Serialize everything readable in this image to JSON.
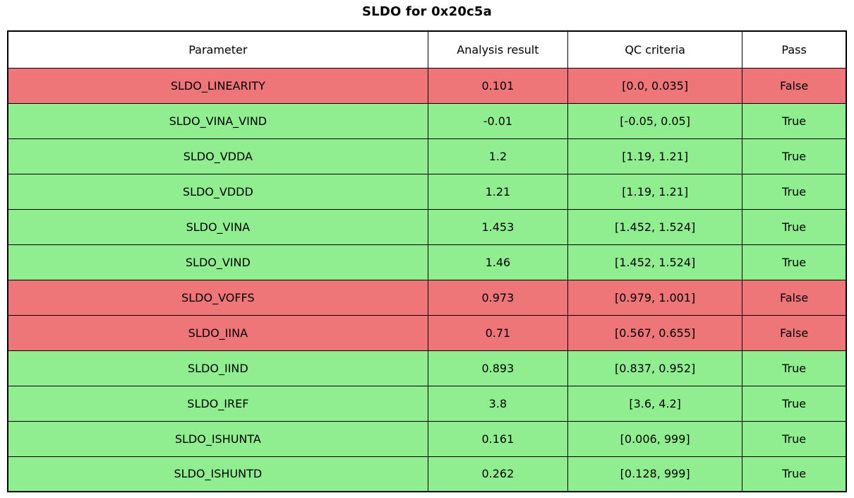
{
  "title": "SLDO for 0x20c5a",
  "colors": {
    "pass_row_bg": "#90ee90",
    "fail_row_bg": "#ee7678",
    "header_bg": "#ffffff",
    "border": "#000000",
    "text": "#000000"
  },
  "table": {
    "headers": [
      "Parameter",
      "Analysis result",
      "QC criteria",
      "Pass"
    ],
    "rows": [
      {
        "parameter": "SLDO_LINEARITY",
        "analysis_result": "0.101",
        "qc_criteria": "[0.0, 0.035]",
        "pass": "False",
        "status": "fail"
      },
      {
        "parameter": "SLDO_VINA_VIND",
        "analysis_result": "-0.01",
        "qc_criteria": "[-0.05, 0.05]",
        "pass": "True",
        "status": "pass"
      },
      {
        "parameter": "SLDO_VDDA",
        "analysis_result": "1.2",
        "qc_criteria": "[1.19, 1.21]",
        "pass": "True",
        "status": "pass"
      },
      {
        "parameter": "SLDO_VDDD",
        "analysis_result": "1.21",
        "qc_criteria": "[1.19, 1.21]",
        "pass": "True",
        "status": "pass"
      },
      {
        "parameter": "SLDO_VINA",
        "analysis_result": "1.453",
        "qc_criteria": "[1.452, 1.524]",
        "pass": "True",
        "status": "pass"
      },
      {
        "parameter": "SLDO_VIND",
        "analysis_result": "1.46",
        "qc_criteria": "[1.452, 1.524]",
        "pass": "True",
        "status": "pass"
      },
      {
        "parameter": "SLDO_VOFFS",
        "analysis_result": "0.973",
        "qc_criteria": "[0.979, 1.001]",
        "pass": "False",
        "status": "fail"
      },
      {
        "parameter": "SLDO_IINA",
        "analysis_result": "0.71",
        "qc_criteria": "[0.567, 0.655]",
        "pass": "False",
        "status": "fail"
      },
      {
        "parameter": "SLDO_IIND",
        "analysis_result": "0.893",
        "qc_criteria": "[0.837, 0.952]",
        "pass": "True",
        "status": "pass"
      },
      {
        "parameter": "SLDO_IREF",
        "analysis_result": "3.8",
        "qc_criteria": "[3.6, 4.2]",
        "pass": "True",
        "status": "pass"
      },
      {
        "parameter": "SLDO_ISHUNTA",
        "analysis_result": "0.161",
        "qc_criteria": "[0.006, 999]",
        "pass": "True",
        "status": "pass"
      },
      {
        "parameter": "SLDO_ISHUNTD",
        "analysis_result": "0.262",
        "qc_criteria": "[0.128, 999]",
        "pass": "True",
        "status": "pass"
      }
    ]
  },
  "chart_data": {
    "type": "table",
    "title": "SLDO for 0x20c5a",
    "columns": [
      "Parameter",
      "Analysis result",
      "QC criteria",
      "Pass"
    ],
    "rows": [
      [
        "SLDO_LINEARITY",
        0.101,
        "[0.0, 0.035]",
        "False"
      ],
      [
        "SLDO_VINA_VIND",
        -0.01,
        "[-0.05, 0.05]",
        "True"
      ],
      [
        "SLDO_VDDA",
        1.2,
        "[1.19, 1.21]",
        "True"
      ],
      [
        "SLDO_VDDD",
        1.21,
        "[1.19, 1.21]",
        "True"
      ],
      [
        "SLDO_VINA",
        1.453,
        "[1.452, 1.524]",
        "True"
      ],
      [
        "SLDO_VIND",
        1.46,
        "[1.452, 1.524]",
        "True"
      ],
      [
        "SLDO_VOFFS",
        0.973,
        "[0.979, 1.001]",
        "False"
      ],
      [
        "SLDO_IINA",
        0.71,
        "[0.567, 0.655]",
        "False"
      ],
      [
        "SLDO_IIND",
        0.893,
        "[0.837, 0.952]",
        "True"
      ],
      [
        "SLDO_IREF",
        3.8,
        "[3.6, 4.2]",
        "True"
      ],
      [
        "SLDO_ISHUNTA",
        0.161,
        "[0.006, 999]",
        "True"
      ],
      [
        "SLDO_ISHUNTD",
        0.262,
        "[0.128, 999]",
        "True"
      ]
    ],
    "row_status": [
      "fail",
      "pass",
      "pass",
      "pass",
      "pass",
      "pass",
      "fail",
      "fail",
      "pass",
      "pass",
      "pass",
      "pass"
    ],
    "layout": {
      "title_position": "top-center",
      "row_color_coding": "green = pass, red = fail",
      "grid": "full black cell borders"
    }
  }
}
